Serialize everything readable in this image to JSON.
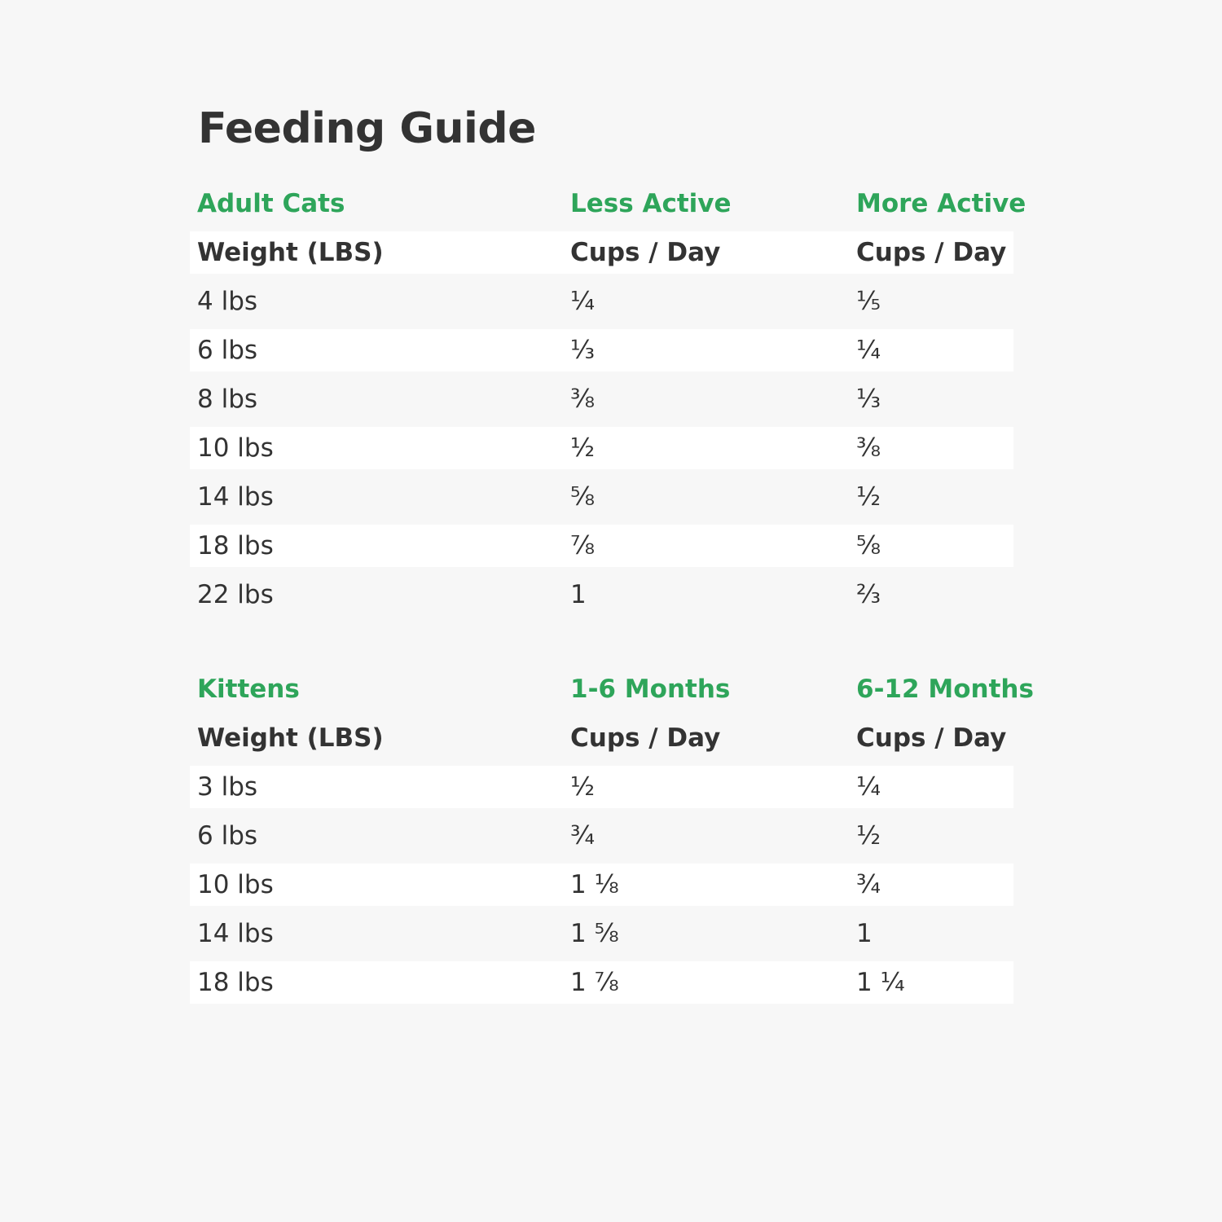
{
  "title": "Feeding Guide",
  "tables": [
    {
      "group": [
        "Adult Cats",
        "Less Active",
        "More Active"
      ],
      "header": [
        "Weight (LBS)",
        "Cups / Day",
        "Cups / Day"
      ],
      "rows": [
        [
          "4 lbs",
          "¼",
          "⅕"
        ],
        [
          "6 lbs",
          "⅓",
          "¼"
        ],
        [
          "8 lbs",
          "⅜",
          "⅓"
        ],
        [
          "10 lbs",
          "½",
          "⅜"
        ],
        [
          "14 lbs",
          "⅝",
          "½"
        ],
        [
          "18 lbs",
          "⅞",
          "⅝"
        ],
        [
          "22 lbs",
          "1",
          "⅔"
        ]
      ]
    },
    {
      "group": [
        "Kittens",
        "1-6 Months",
        "6-12 Months"
      ],
      "header": [
        "Weight (LBS)",
        "Cups / Day",
        "Cups / Day"
      ],
      "rows": [
        [
          "3 lbs",
          "½",
          "¼"
        ],
        [
          "6 lbs",
          "¾",
          "½"
        ],
        [
          "10 lbs",
          "1 ⅛",
          "¾"
        ],
        [
          "14 lbs",
          "1 ⅝",
          "1"
        ],
        [
          "18 lbs",
          "1 ⅞",
          "1 ¼"
        ]
      ]
    }
  ]
}
